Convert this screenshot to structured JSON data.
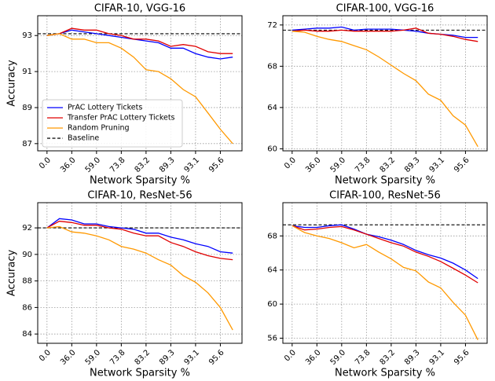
{
  "chart_data": [
    {
      "type": "line",
      "title": "CIFAR-10, VGG-16",
      "xlabel": "Network Sparsity %",
      "ylabel": "Accuracy",
      "categories": [
        "0.0",
        null,
        "36.0",
        null,
        "59.0",
        null,
        "73.8",
        null,
        "83.2",
        null,
        "89.3",
        null,
        "93.1",
        null,
        "95.6",
        null
      ],
      "ylim": [
        86.6,
        94.1
      ],
      "yticks": [
        87,
        89,
        91,
        93
      ],
      "grid": true,
      "legend": "lower left",
      "series": [
        {
          "name": "PrAC Lottery Tickets",
          "color": "#0000ff",
          "values": [
            93.0,
            93.1,
            93.3,
            93.2,
            93.1,
            93.0,
            92.9,
            92.8,
            92.7,
            92.6,
            92.3,
            92.3,
            92.0,
            91.8,
            91.7,
            91.8
          ]
        },
        {
          "name": "Transfer PrAC Lottery Tickets",
          "color": "#e00000",
          "values": [
            93.0,
            93.1,
            93.4,
            93.3,
            93.3,
            93.1,
            93.0,
            92.8,
            92.8,
            92.7,
            92.4,
            92.5,
            92.4,
            92.1,
            92.0,
            92.0
          ]
        },
        {
          "name": "Random Pruning",
          "color": "#ff9900",
          "values": [
            93.0,
            93.1,
            92.8,
            92.8,
            92.6,
            92.6,
            92.3,
            91.8,
            91.1,
            91.0,
            90.6,
            90.0,
            89.6,
            88.7,
            87.8,
            87.0
          ]
        }
      ],
      "baseline": {
        "name": "Baseline",
        "value": 93.1,
        "color": "#000000"
      }
    },
    {
      "type": "line",
      "title": "CIFAR-100, VGG-16",
      "xlabel": "Network Sparsity %",
      "categories": [
        "0.0",
        null,
        "36.0",
        null,
        "59.0",
        null,
        "73.8",
        null,
        "83.2",
        null,
        "89.3",
        null,
        "93.1",
        null,
        "95.6",
        null
      ],
      "ylim": [
        59.8,
        72.9
      ],
      "yticks": [
        60,
        64,
        68,
        72
      ],
      "grid": true,
      "series": [
        {
          "color": "#0000ff",
          "values": [
            71.5,
            71.6,
            71.7,
            71.7,
            71.8,
            71.5,
            71.6,
            71.6,
            71.6,
            71.5,
            71.4,
            71.2,
            71.1,
            71.0,
            70.8,
            70.8
          ]
        },
        {
          "color": "#e00000",
          "values": [
            71.4,
            71.5,
            71.4,
            71.4,
            71.5,
            71.4,
            71.4,
            71.4,
            71.4,
            71.5,
            71.7,
            71.2,
            71.1,
            70.9,
            70.6,
            70.4
          ]
        },
        {
          "color": "#ff9900",
          "values": [
            71.4,
            71.3,
            70.9,
            70.6,
            70.4,
            70.0,
            69.6,
            68.9,
            68.1,
            67.3,
            66.6,
            65.3,
            64.7,
            63.2,
            62.3,
            60.2
          ]
        }
      ],
      "baseline": {
        "value": 71.5,
        "color": "#000000"
      }
    },
    {
      "type": "line",
      "title": "CIFAR-10, ResNet-56",
      "xlabel": "Network Sparsity %",
      "ylabel": "Accuracy",
      "categories": [
        "0.0",
        null,
        "36.0",
        null,
        "59.0",
        null,
        "73.8",
        null,
        "83.2",
        null,
        "89.3",
        null,
        "93.1",
        null,
        "95.6",
        null
      ],
      "ylim": [
        83.3,
        93.9
      ],
      "yticks": [
        84,
        86,
        88,
        90,
        92
      ],
      "grid": true,
      "series": [
        {
          "color": "#0000ff",
          "values": [
            92.0,
            92.7,
            92.6,
            92.3,
            92.3,
            92.1,
            92.0,
            91.9,
            91.6,
            91.6,
            91.3,
            91.1,
            90.8,
            90.6,
            90.2,
            90.1
          ]
        },
        {
          "color": "#e00000",
          "values": [
            92.0,
            92.5,
            92.4,
            92.2,
            92.2,
            92.0,
            91.9,
            91.6,
            91.4,
            91.4,
            90.9,
            90.6,
            90.2,
            89.9,
            89.7,
            89.6
          ]
        },
        {
          "color": "#ff9900",
          "values": [
            92.0,
            92.1,
            91.7,
            91.6,
            91.4,
            91.1,
            90.6,
            90.4,
            90.1,
            89.6,
            89.2,
            88.4,
            87.9,
            87.1,
            86.0,
            84.3
          ]
        }
      ],
      "baseline": {
        "value": 92.0,
        "color": "#000000"
      }
    },
    {
      "type": "line",
      "title": "CIFAR-100, ResNet-56",
      "xlabel": "Network Sparsity %",
      "categories": [
        "0.0",
        null,
        "36.0",
        null,
        "59.0",
        null,
        "73.8",
        null,
        "83.2",
        null,
        "89.3",
        null,
        "93.1",
        null,
        "95.6",
        null
      ],
      "ylim": [
        55.4,
        71.9
      ],
      "yticks": [
        56,
        60,
        64,
        68
      ],
      "grid": true,
      "series": [
        {
          "color": "#0000ff",
          "values": [
            69.2,
            69.0,
            69.0,
            69.2,
            69.3,
            68.8,
            68.2,
            67.9,
            67.5,
            67.0,
            66.3,
            65.8,
            65.4,
            64.8,
            64.0,
            63.0
          ]
        },
        {
          "color": "#e00000",
          "values": [
            69.2,
            68.7,
            68.8,
            69.0,
            69.1,
            68.7,
            68.2,
            67.7,
            67.2,
            66.8,
            66.1,
            65.6,
            65.0,
            64.2,
            63.4,
            62.5
          ]
        },
        {
          "color": "#ff9900",
          "values": [
            69.2,
            68.4,
            68.0,
            67.7,
            67.2,
            66.6,
            67.0,
            66.1,
            65.3,
            64.3,
            63.9,
            62.6,
            61.9,
            60.2,
            58.7,
            55.8
          ]
        }
      ],
      "baseline": {
        "value": 69.3,
        "color": "#000000"
      }
    }
  ]
}
